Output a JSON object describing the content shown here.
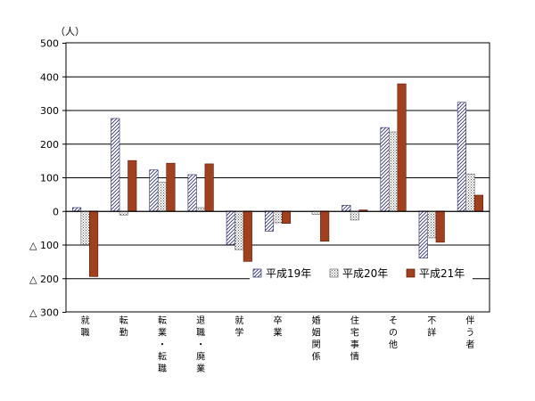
{
  "chart_data": {
    "type": "bar",
    "unit_label": "（人）",
    "ylim": [
      -300,
      500
    ],
    "y_ticks": [
      {
        "value": 500,
        "label": "500"
      },
      {
        "value": 400,
        "label": "400"
      },
      {
        "value": 300,
        "label": "300"
      },
      {
        "value": 200,
        "label": "200"
      },
      {
        "value": 100,
        "label": "100"
      },
      {
        "value": 0,
        "label": "0"
      },
      {
        "value": -100,
        "label": "△ 100"
      },
      {
        "value": -200,
        "label": "△ 200"
      },
      {
        "value": -300,
        "label": "△ 300"
      }
    ],
    "grid": true,
    "legend_position": "bottom-right",
    "categories": [
      [
        "就",
        "職"
      ],
      [
        "転",
        "勤"
      ],
      [
        "転",
        "業",
        "・",
        "転",
        "職"
      ],
      [
        "退",
        "職",
        "・",
        "廃",
        "業"
      ],
      [
        "就",
        "学"
      ],
      [
        "卒",
        "業"
      ],
      [
        "婚",
        "姻",
        "関",
        "係"
      ],
      [
        "住",
        "宅",
        "事",
        "情"
      ],
      [
        "そ",
        "の",
        "他"
      ],
      [
        "不",
        "詳"
      ],
      [
        "伴",
        "う",
        "者"
      ]
    ],
    "series": [
      {
        "name": "平成19年",
        "color": "#ffffff",
        "pattern": "diagonal-hatch",
        "values": [
          10,
          275,
          122,
          108,
          -100,
          -60,
          0,
          17,
          248,
          -140,
          323
        ]
      },
      {
        "name": "平成20年",
        "color": "#ffffff",
        "pattern": "dots",
        "values": [
          -100,
          -12,
          85,
          10,
          -115,
          -35,
          -10,
          -27,
          235,
          -80,
          110
        ]
      },
      {
        "name": "平成21年",
        "color": "#a0401e",
        "pattern": "solid",
        "values": [
          -195,
          150,
          142,
          140,
          -150,
          -37,
          -90,
          3,
          378,
          -93,
          47
        ]
      }
    ]
  }
}
